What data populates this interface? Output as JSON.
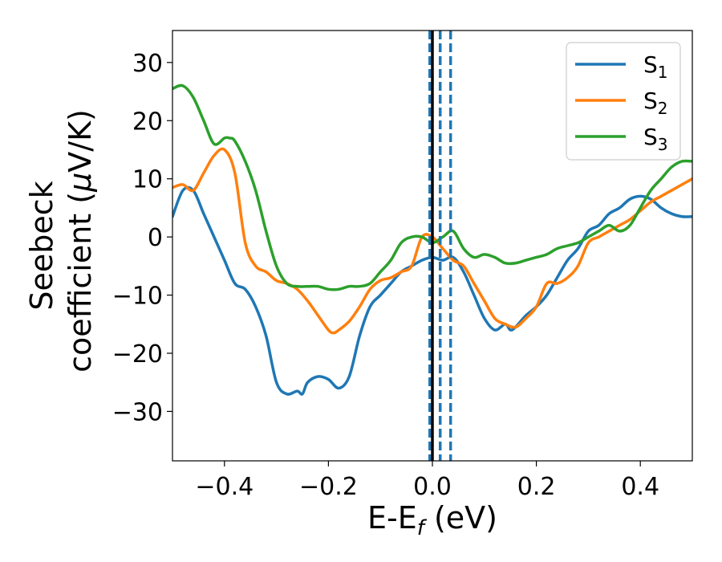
{
  "chart_data": {
    "type": "line",
    "xlabel": "E-E",
    "xlabel_sub": "f",
    "xlabel_unit": " (eV)",
    "ylabel_line1": "Seebeck",
    "ylabel_line2_pre": "coefficient  (",
    "ylabel_mu": "μ",
    "ylabel_line2_post": "V/K)",
    "xlim": [
      -0.5,
      0.5
    ],
    "ylim": [
      -38.5,
      35.5
    ],
    "xticks": [
      -0.4,
      -0.2,
      0.0,
      0.2,
      0.4
    ],
    "xtick_labels": [
      "−0.4",
      "−0.2",
      "0.0",
      "0.2",
      "0.4"
    ],
    "yticks": [
      -30,
      -20,
      -10,
      0,
      10,
      20,
      30
    ],
    "ytick_labels": [
      "−30",
      "−20",
      "−10",
      "0",
      "10",
      "20",
      "30"
    ],
    "grid": false,
    "legend_position": "top-right",
    "vlines": [
      {
        "x": -0.005,
        "style": "dashed",
        "color": "#1f77b4"
      },
      {
        "x": 0.0,
        "style": "solid",
        "color": "#000000"
      },
      {
        "x": 0.015,
        "style": "dashed",
        "color": "#1f77b4"
      },
      {
        "x": 0.035,
        "style": "dashed",
        "color": "#1f77b4"
      }
    ],
    "series": [
      {
        "name": "S",
        "sub": "1",
        "color": "#1f77b4",
        "x": [
          -0.5,
          -0.48,
          -0.46,
          -0.44,
          -0.42,
          -0.4,
          -0.38,
          -0.36,
          -0.34,
          -0.32,
          -0.3,
          -0.28,
          -0.26,
          -0.25,
          -0.24,
          -0.22,
          -0.2,
          -0.18,
          -0.16,
          -0.14,
          -0.12,
          -0.1,
          -0.08,
          -0.06,
          -0.04,
          -0.02,
          0.0,
          0.02,
          0.04,
          0.06,
          0.08,
          0.1,
          0.12,
          0.14,
          0.15,
          0.16,
          0.18,
          0.2,
          0.22,
          0.24,
          0.26,
          0.28,
          0.3,
          0.32,
          0.34,
          0.36,
          0.38,
          0.4,
          0.42,
          0.44,
          0.46,
          0.48,
          0.5
        ],
        "y": [
          3.5,
          8,
          8,
          4,
          0,
          -4,
          -8,
          -9,
          -12,
          -17,
          -25,
          -27,
          -26.5,
          -27,
          -25,
          -24,
          -24.5,
          -26,
          -24,
          -17,
          -12,
          -10,
          -8,
          -6,
          -5,
          -4,
          -3.5,
          -4,
          -3.5,
          -6,
          -10,
          -14,
          -16,
          -15,
          -16,
          -15.5,
          -13.5,
          -12,
          -10,
          -7,
          -4,
          -2,
          1,
          2,
          4,
          5,
          6.5,
          7,
          6.5,
          5,
          4,
          3.5,
          3.5
        ]
      },
      {
        "name": "S",
        "sub": "2",
        "color": "#ff7f0e",
        "x": [
          -0.5,
          -0.48,
          -0.46,
          -0.44,
          -0.42,
          -0.4,
          -0.38,
          -0.36,
          -0.34,
          -0.32,
          -0.3,
          -0.28,
          -0.26,
          -0.24,
          -0.22,
          -0.2,
          -0.19,
          -0.18,
          -0.16,
          -0.14,
          -0.12,
          -0.1,
          -0.08,
          -0.06,
          -0.04,
          -0.02,
          0.0,
          0.02,
          0.04,
          0.06,
          0.08,
          0.1,
          0.12,
          0.14,
          0.16,
          0.18,
          0.2,
          0.22,
          0.24,
          0.26,
          0.28,
          0.3,
          0.32,
          0.34,
          0.36,
          0.38,
          0.4,
          0.42,
          0.44,
          0.46,
          0.48,
          0.5
        ],
        "y": [
          8.5,
          9,
          8,
          11,
          14,
          15,
          11,
          -1,
          -5,
          -6,
          -7.5,
          -8,
          -9,
          -11,
          -13.5,
          -16,
          -16.5,
          -16,
          -14.5,
          -12,
          -9,
          -7.5,
          -7,
          -6,
          -5,
          0,
          0,
          -2,
          -4,
          -5,
          -8,
          -11,
          -14,
          -15,
          -15.5,
          -14,
          -12,
          -8,
          -8,
          -7,
          -5,
          -1,
          0,
          1,
          2,
          3,
          4.5,
          6,
          7,
          8,
          9,
          10
        ]
      },
      {
        "name": "S",
        "sub": "3",
        "color": "#2ca02c",
        "x": [
          -0.5,
          -0.48,
          -0.46,
          -0.44,
          -0.42,
          -0.4,
          -0.39,
          -0.38,
          -0.36,
          -0.34,
          -0.32,
          -0.3,
          -0.28,
          -0.26,
          -0.24,
          -0.22,
          -0.2,
          -0.18,
          -0.16,
          -0.14,
          -0.12,
          -0.1,
          -0.08,
          -0.06,
          -0.04,
          -0.02,
          0.0,
          0.02,
          0.04,
          0.06,
          0.08,
          0.1,
          0.12,
          0.14,
          0.16,
          0.18,
          0.2,
          0.22,
          0.24,
          0.26,
          0.28,
          0.3,
          0.32,
          0.34,
          0.36,
          0.38,
          0.4,
          0.42,
          0.44,
          0.46,
          0.48,
          0.5
        ],
        "y": [
          25.5,
          26,
          24,
          20,
          16,
          17,
          17,
          16.5,
          13,
          8,
          1,
          -5,
          -8,
          -8.5,
          -8.5,
          -8.5,
          -9,
          -9,
          -8.5,
          -8.5,
          -8,
          -6,
          -4,
          -1,
          0,
          0,
          -1,
          0,
          1,
          -2,
          -3.5,
          -3,
          -3.5,
          -4.5,
          -4.5,
          -4,
          -3.5,
          -3,
          -2,
          -1.5,
          -1,
          0,
          1,
          2,
          1,
          2,
          5,
          8,
          10,
          12,
          13,
          13
        ]
      }
    ]
  }
}
